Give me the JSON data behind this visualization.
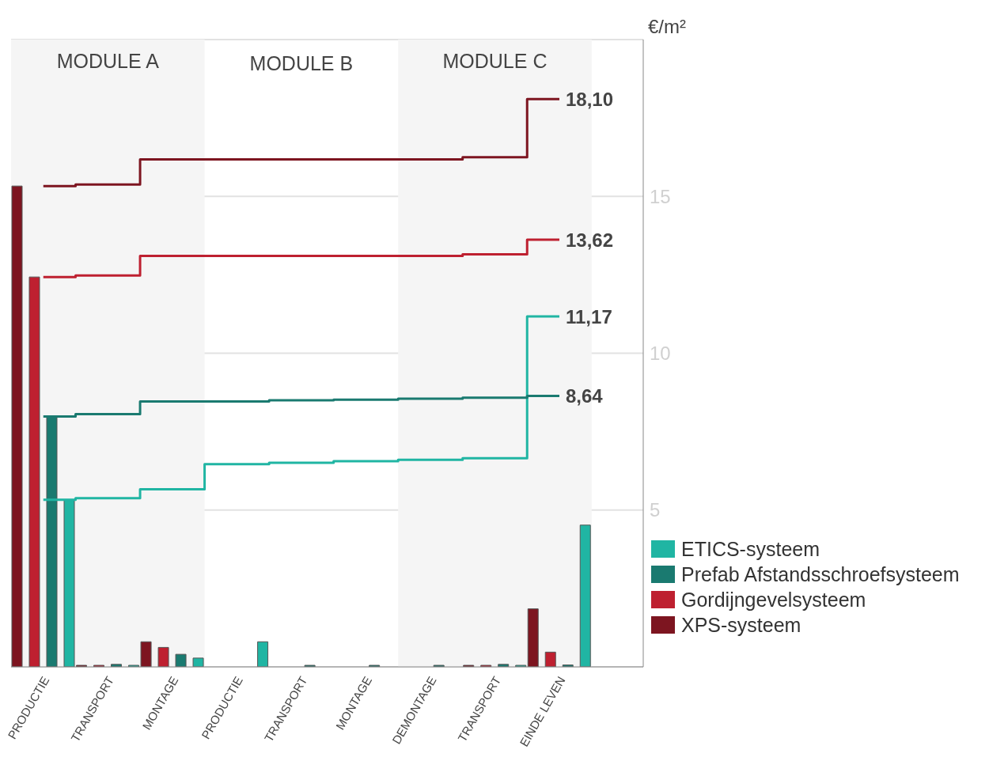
{
  "chart_data": {
    "type": "bar",
    "categories": [
      "PRODUCTIE",
      "TRANSPORT",
      "MONTAGE",
      "PRODUCTIE",
      "TRANSPORT",
      "MONTAGE",
      "DEMONTAGE",
      "TRANSPORT",
      "EINDE LEVEN"
    ],
    "ylabel": "€/m²",
    "ylim": [
      0,
      20
    ],
    "yticks": [
      5,
      10,
      15
    ],
    "grid": "y",
    "legend": "bottom right",
    "marker": "none",
    "bands": [
      {
        "axis": "x",
        "from": "PRODUCTIE",
        "to": "MONTAGE",
        "label": "MODULE A",
        "color": "#f5f5f5"
      },
      {
        "axis": "x",
        "from": "DEMONTAGE",
        "to": "EINDE LEVEN",
        "label": "MODULE C",
        "color": "#f5f5f5"
      }
    ],
    "annotations": [
      "MODULE B"
    ],
    "series": [
      {
        "name": "ETICS-systeem",
        "color": "#20b5a3",
        "values": [
          5.33,
          0.05,
          0.28,
          0.8,
          0,
          0,
          0,
          0.05,
          4.52
        ]
      },
      {
        "name": "Prefab Afstandsschroefsysteem",
        "color": "#1a7a70",
        "values": [
          7.98,
          0.08,
          0.4,
          0,
          0.05,
          0.05,
          0.05,
          0.08,
          0.06
        ]
      },
      {
        "name": "Gordijngevelsysteem",
        "color": "#be2030",
        "values": [
          12.43,
          0.05,
          0.62,
          0,
          0,
          0,
          0,
          0.05,
          0.47
        ]
      },
      {
        "name": "XPS-systeem",
        "color": "#7d1520",
        "values": [
          15.33,
          0.05,
          0.8,
          0,
          0,
          0,
          0,
          0.05,
          1.85
        ]
      },
      {
        "type": "step",
        "color": "#20b5a3",
        "values": [
          5.33,
          5.38,
          5.66,
          6.46,
          6.51,
          6.56,
          6.6,
          6.65,
          11.17
        ],
        "value_labels": [
          null,
          null,
          null,
          null,
          null,
          null,
          null,
          null,
          "11,17"
        ]
      },
      {
        "type": "step",
        "color": "#1a7a70",
        "values": [
          7.98,
          8.06,
          8.46,
          8.46,
          8.5,
          8.52,
          8.55,
          8.58,
          8.64
        ],
        "value_labels": [
          null,
          null,
          null,
          null,
          null,
          null,
          null,
          null,
          "8,64"
        ]
      },
      {
        "type": "step",
        "color": "#be2030",
        "values": [
          12.43,
          12.48,
          13.1,
          13.1,
          13.1,
          13.1,
          13.1,
          13.15,
          13.62
        ],
        "value_labels": [
          null,
          null,
          null,
          null,
          null,
          null,
          null,
          null,
          "13,62"
        ]
      },
      {
        "type": "step",
        "color": "#7d1520",
        "values": [
          15.33,
          15.38,
          16.18,
          16.18,
          16.18,
          16.18,
          16.18,
          16.25,
          18.1
        ],
        "value_labels": [
          null,
          null,
          null,
          null,
          null,
          null,
          null,
          null,
          "18,10"
        ]
      }
    ]
  }
}
